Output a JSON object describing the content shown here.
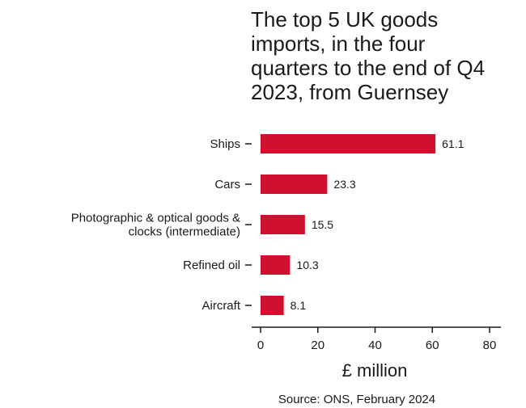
{
  "chart_data": {
    "type": "bar",
    "orientation": "horizontal",
    "title_lines": [
      "The top 5 UK goods",
      "imports, in the four",
      "quarters to the end of Q4",
      "2023, from Guernsey"
    ],
    "categories": [
      [
        "Ships"
      ],
      [
        "Cars"
      ],
      [
        "Photographic & optical goods &",
        "clocks (intermediate)"
      ],
      [
        "Refined oil"
      ],
      [
        "Aircraft"
      ]
    ],
    "values": [
      61.1,
      23.3,
      15.5,
      10.3,
      8.1
    ],
    "value_labels": [
      "61.1",
      "23.3",
      "15.5",
      "10.3",
      "8.1"
    ],
    "xlabel": "£ million",
    "xlim": [
      0,
      80
    ],
    "xticks": [
      0,
      20,
      40,
      60,
      80
    ],
    "bar_color": "#d0102f",
    "grid": false,
    "source": "Source: ONS, February 2024"
  }
}
